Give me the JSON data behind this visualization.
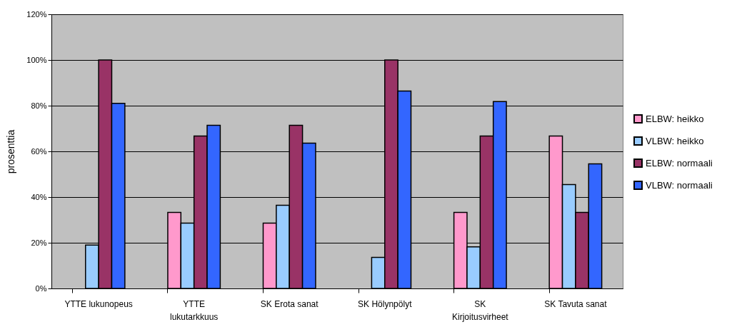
{
  "chart_data": {
    "type": "bar",
    "ylabel": "prosenttia",
    "categories": [
      "YTTE lukunopeus",
      "YTTE\nlukutarkkuus",
      "SK Erota sanat",
      "SK Hölynpölyt",
      "SK\nKirjoitusvirheet",
      "SK Tavuta sanat"
    ],
    "series": [
      {
        "name": "ELBW: heikko",
        "color": "#ff99cc",
        "values": [
          null,
          33.3,
          28.6,
          null,
          33.3,
          66.7
        ]
      },
      {
        "name": "VLBW: heikko",
        "color": "#99ccff",
        "values": [
          19,
          28.6,
          36.4,
          13.6,
          18.2,
          45.5
        ]
      },
      {
        "name": "ELBW: normaali",
        "color": "#993366",
        "values": [
          100,
          66.7,
          71.4,
          100,
          66.7,
          33.3
        ]
      },
      {
        "name": "VLBW: normaali",
        "color": "#3366ff",
        "values": [
          81,
          71.4,
          63.6,
          86.4,
          81.8,
          54.5
        ]
      }
    ],
    "ylim": [
      0,
      120
    ],
    "yticks": [
      {
        "value": 0,
        "label": "0%"
      },
      {
        "value": 20,
        "label": "20%"
      },
      {
        "value": 40,
        "label": "40%"
      },
      {
        "value": 60,
        "label": "60%"
      },
      {
        "value": 80,
        "label": "80%"
      },
      {
        "value": 100,
        "label": "100%"
      },
      {
        "value": 120,
        "label": "120%"
      }
    ],
    "grid": "y",
    "legend": "right"
  }
}
